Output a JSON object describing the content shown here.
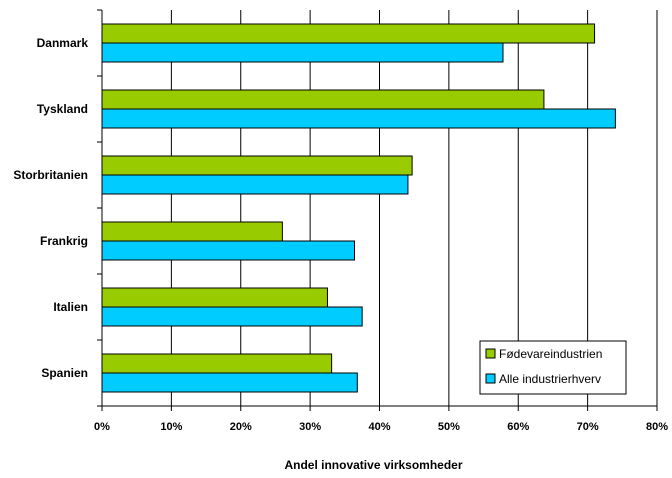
{
  "chart_data": {
    "type": "bar",
    "orientation": "horizontal",
    "categories": [
      "Danmark",
      "Tyskland",
      "Storbritanien",
      "Frankrig",
      "Italien",
      "Spanien"
    ],
    "series": [
      {
        "name": "Fødevareindustrien",
        "color": "#99cc00",
        "values": [
          71.0,
          63.7,
          44.7,
          26.0,
          32.5,
          33.1
        ]
      },
      {
        "name": "Alle industrierhverv",
        "color": "#00ccff",
        "values": [
          57.8,
          74.0,
          44.1,
          36.4,
          37.5,
          36.8
        ]
      }
    ],
    "xlabel": "Andel innovative virksomheder",
    "xlim": [
      0,
      80
    ],
    "xticks": [
      "0%",
      "10%",
      "20%",
      "30%",
      "40%",
      "50%",
      "60%",
      "70%",
      "80%"
    ],
    "grid": "vertical",
    "legend": "bottom-right"
  }
}
